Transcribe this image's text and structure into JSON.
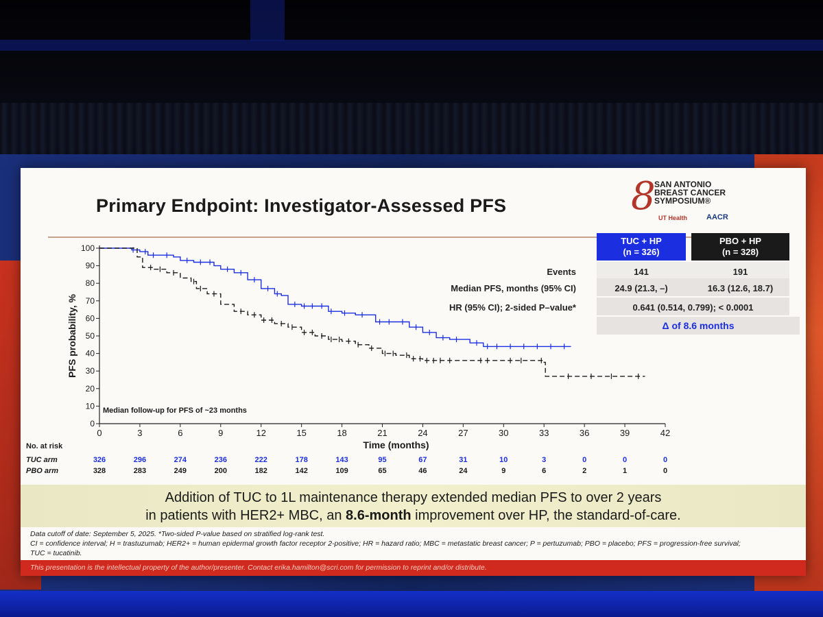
{
  "slide": {
    "title": "Primary Endpoint: Investigator-Assessed PFS",
    "logo": {
      "org_line1": "SAN ANTONIO",
      "org_line2": "BREAST CANCER",
      "org_line3": "SYMPOSIUM®",
      "partner1": "UT Health",
      "partner2": "AACR"
    },
    "stats_table": {
      "arm1_header_line1": "TUC + HP",
      "arm1_header_line2": "(n = 326)",
      "arm2_header_line1": "PBO + HP",
      "arm2_header_line2": "(n = 328)",
      "rows": [
        {
          "label": "Events",
          "arm1": "141",
          "arm2": "191"
        },
        {
          "label": "Median PFS, months (95% CI)",
          "arm1": "24.9 (21.3, –)",
          "arm2": "16.3 (12.6, 18.7)"
        },
        {
          "label": "HR (95% CI); 2-sided P–value*",
          "combined": "0.641 (0.514, 0.799); < 0.0001"
        }
      ],
      "delta": "Δ of 8.6 months"
    },
    "followup_note": "Median follow-up for PFS of ~23 months",
    "risk_table": {
      "heading": "No. at risk",
      "arm1_label": "TUC arm",
      "arm2_label": "PBO arm",
      "arm1_values": [
        "326",
        "296",
        "274",
        "236",
        "222",
        "178",
        "143",
        "95",
        "67",
        "31",
        "10",
        "3",
        "0",
        "0",
        "0"
      ],
      "arm2_values": [
        "328",
        "283",
        "249",
        "200",
        "182",
        "142",
        "109",
        "65",
        "46",
        "24",
        "9",
        "6",
        "2",
        "1",
        "0"
      ]
    },
    "banner": {
      "line1": "Addition of TUC to 1L maintenance therapy extended median PFS to over 2 years",
      "line2_pre": "in patients with HER2+ MBC, an ",
      "line2_bold": "8.6-month",
      "line2_post": " improvement over HP, the standard-of-care."
    },
    "footnotes": {
      "line1": "Data cutoff of date: September 5, 2025. *Two-sided P-value based on stratified log-rank test.",
      "line2": "CI = confidence interval; H = trastuzumab; HER2+ = human epidermal growth factor receptor 2-positive; HR = hazard ratio; MBC = metastatic breast cancer; P = pertuzumab; PBO = placebo; PFS = progression-free survival;",
      "line3": "TUC = tucatinib."
    },
    "disclaimer": "This presentation is the intellectual property of the author/presenter. Contact erika.hamilton@scri.com for permission to reprint and/or distribute."
  },
  "colors": {
    "tuc": "#1b2ee0",
    "pbo": "#1a1a1a",
    "disclaimer_bar": "#d02a1e"
  },
  "chart_data": {
    "type": "line",
    "subtype": "kaplan-meier",
    "xlabel": "Time (months)",
    "ylabel": "PFS probability, %",
    "xlim": [
      0,
      42
    ],
    "ylim": [
      0,
      100
    ],
    "xticks": [
      0,
      3,
      6,
      9,
      12,
      15,
      18,
      21,
      24,
      27,
      30,
      33,
      36,
      39,
      42
    ],
    "yticks": [
      0,
      10,
      20,
      30,
      40,
      50,
      60,
      70,
      80,
      90,
      100
    ],
    "series": [
      {
        "name": "TUC + HP",
        "color": "#1b2ee0",
        "style": "solid",
        "points": [
          [
            0,
            100
          ],
          [
            1.8,
            100
          ],
          [
            2.4,
            99
          ],
          [
            3.0,
            98
          ],
          [
            3.6,
            96
          ],
          [
            5.5,
            95
          ],
          [
            6.0,
            93
          ],
          [
            7.0,
            92
          ],
          [
            8.5,
            90
          ],
          [
            9.0,
            88
          ],
          [
            10.0,
            86
          ],
          [
            11.0,
            82
          ],
          [
            12.0,
            77
          ],
          [
            13.0,
            74
          ],
          [
            13.5,
            73
          ],
          [
            14.0,
            68
          ],
          [
            15.0,
            67
          ],
          [
            17.0,
            64
          ],
          [
            18.0,
            63
          ],
          [
            19.0,
            62
          ],
          [
            20.5,
            58
          ],
          [
            23.0,
            55
          ],
          [
            24.0,
            52
          ],
          [
            25.0,
            49
          ],
          [
            26.0,
            48
          ],
          [
            27.5,
            46
          ],
          [
            28.5,
            44
          ],
          [
            35.0,
            44
          ]
        ],
        "censor_x": [
          2.5,
          3.4,
          4.0,
          5.0,
          6.5,
          7.5,
          8.2,
          9.5,
          10.5,
          11.5,
          12.5,
          13.2,
          14.5,
          15.2,
          15.8,
          16.5,
          17.2,
          18.2,
          19.5,
          20.8,
          21.5,
          22.5,
          23.5,
          24.5,
          25.5,
          26.5,
          28.0,
          28.8,
          29.5,
          30.5,
          31.5,
          32.5,
          33.5,
          34.5
        ]
      },
      {
        "name": "PBO + HP",
        "color": "#1a1a1a",
        "style": "dashed",
        "points": [
          [
            0,
            100
          ],
          [
            1.8,
            100
          ],
          [
            2.8,
            95
          ],
          [
            3.2,
            89
          ],
          [
            4.0,
            88
          ],
          [
            5.0,
            86
          ],
          [
            6.0,
            83
          ],
          [
            6.8,
            81
          ],
          [
            7.2,
            77
          ],
          [
            8.0,
            74
          ],
          [
            9.0,
            68
          ],
          [
            10.0,
            64
          ],
          [
            11.0,
            62
          ],
          [
            12.0,
            59
          ],
          [
            13.0,
            57
          ],
          [
            14.0,
            55
          ],
          [
            15.0,
            52
          ],
          [
            16.0,
            50
          ],
          [
            17.0,
            48
          ],
          [
            18.0,
            47
          ],
          [
            19.0,
            45
          ],
          [
            20.0,
            43
          ],
          [
            21.0,
            40
          ],
          [
            22.0,
            39
          ],
          [
            23.0,
            37
          ],
          [
            24.0,
            36
          ],
          [
            33.0,
            35
          ],
          [
            33.1,
            27
          ],
          [
            40.5,
            27
          ]
        ],
        "censor_x": [
          3.8,
          4.5,
          5.5,
          7.0,
          7.5,
          8.5,
          10.5,
          11.5,
          12.2,
          12.8,
          13.5,
          14.3,
          15.2,
          15.8,
          16.5,
          17.2,
          17.8,
          18.5,
          19.2,
          20.2,
          21.2,
          21.8,
          22.8,
          23.3,
          23.8,
          24.3,
          24.8,
          25.3,
          26.0,
          28.3,
          28.8,
          30.5,
          31.3,
          32.8,
          34.8,
          36.5,
          38.0,
          40.0
        ]
      }
    ]
  }
}
